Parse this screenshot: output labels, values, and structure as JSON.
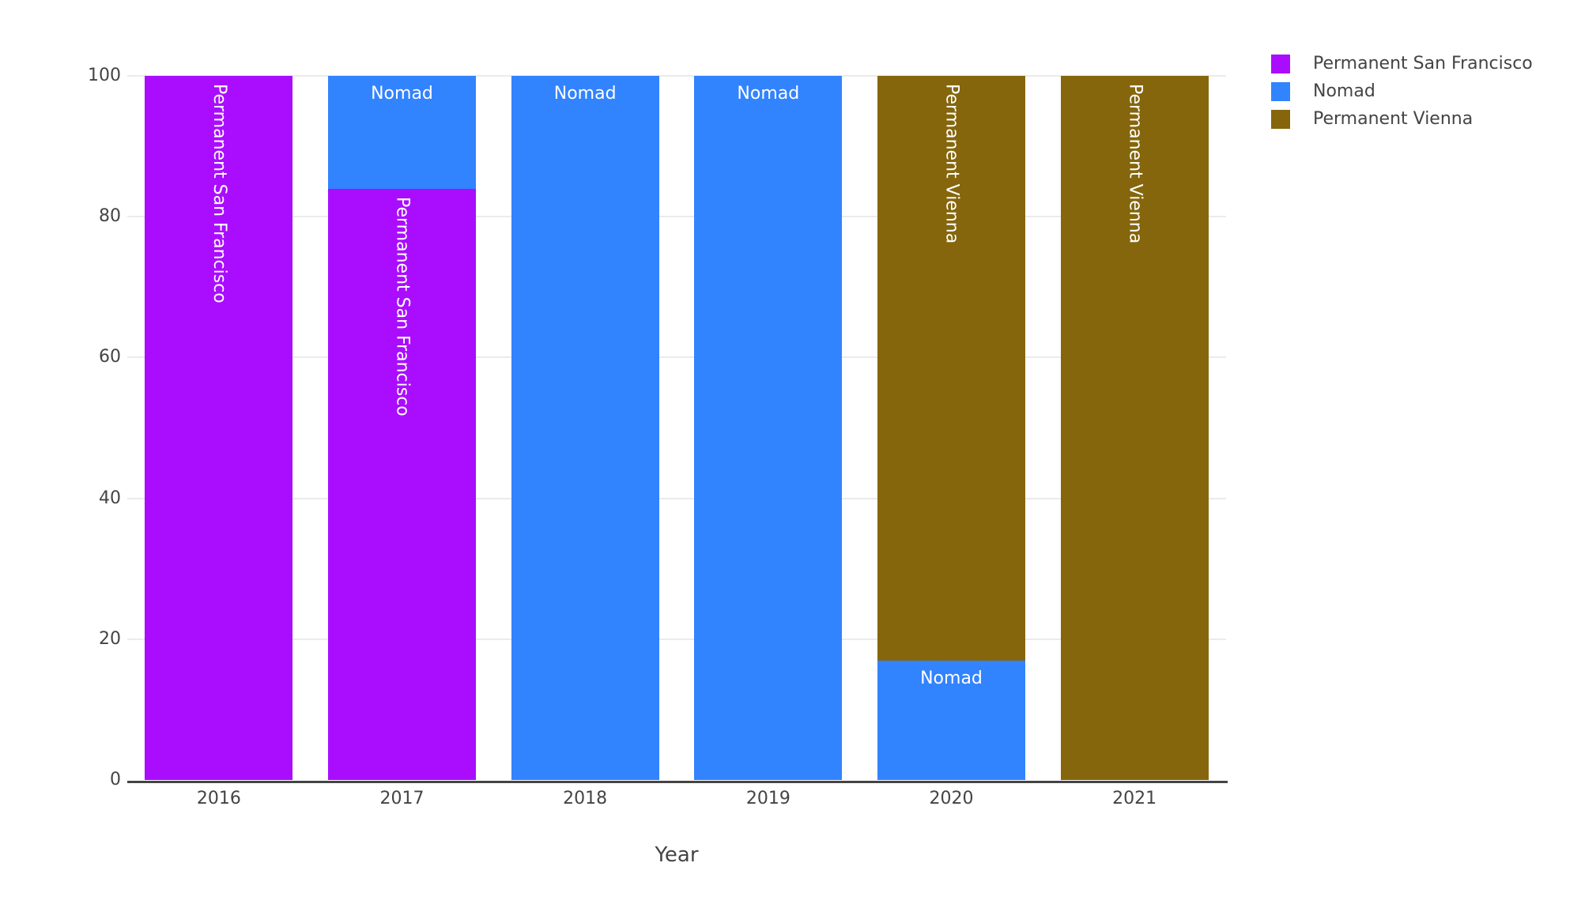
{
  "chart_data": {
    "type": "bar",
    "stacked": true,
    "orientation": "vertical",
    "title": "",
    "xlabel": "Year",
    "ylabel": "",
    "categories": [
      "2016",
      "2017",
      "2018",
      "2019",
      "2020",
      "2021"
    ],
    "series": [
      {
        "name": "Permanent San Francisco",
        "color": "#AA0DFE",
        "values": [
          100,
          84,
          0,
          0,
          0,
          0
        ]
      },
      {
        "name": "Nomad",
        "color": "#3283FE",
        "values": [
          0,
          16,
          100,
          100,
          17,
          0
        ]
      },
      {
        "name": "Permanent Vienna",
        "color": "#85660D",
        "values": [
          0,
          0,
          0,
          0,
          83,
          100
        ]
      }
    ],
    "ylim": [
      0,
      100
    ],
    "yticks": [
      0,
      20,
      40,
      60,
      80,
      100
    ],
    "grid": true,
    "bar_labels": "series name inside segment, anchored top, white",
    "legend": {
      "position": "outside-top-right",
      "entries": [
        "Permanent San Francisco",
        "Nomad",
        "Permanent Vienna"
      ]
    }
  },
  "style": {
    "background_color": "#ffffff",
    "text_color": "#444444",
    "grid_color": "#ebebeb",
    "axis_line_color": "#444444",
    "bar_label_color": "#ffffff"
  }
}
